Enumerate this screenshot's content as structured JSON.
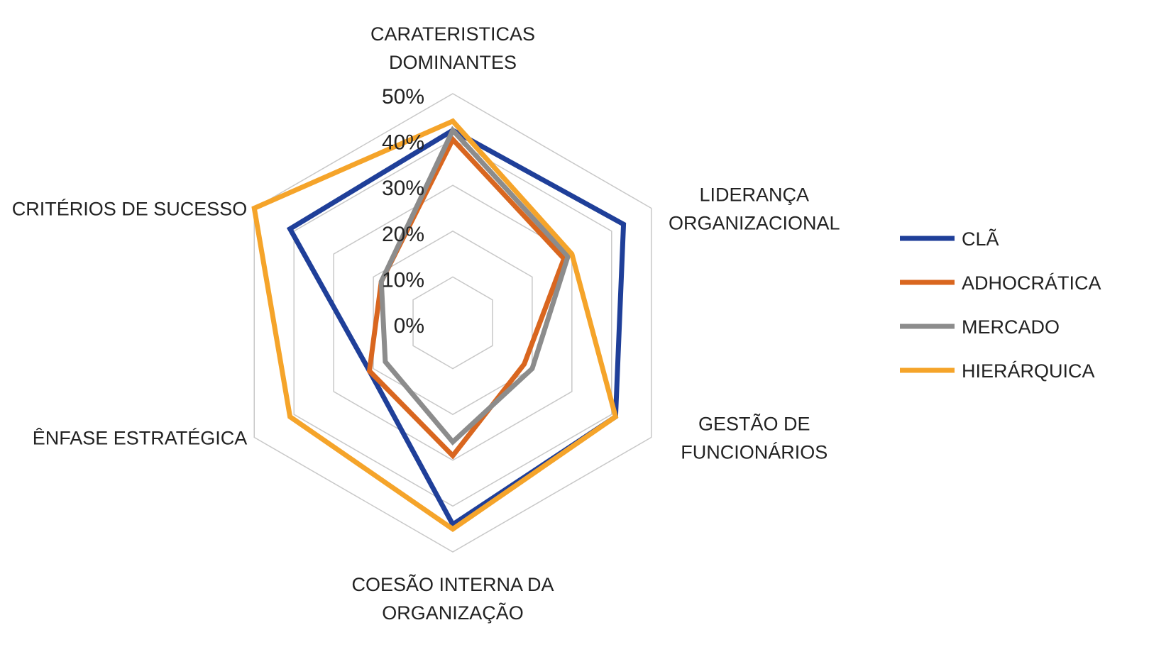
{
  "chart_data": {
    "type": "radar",
    "axes": [
      [
        "CARATERISTICAS",
        "DOMINANTES"
      ],
      [
        "LIDERANÇA",
        "ORGANIZACIONAL"
      ],
      [
        "GESTÃO DE",
        "FUNCIONÁRIOS"
      ],
      [
        "COESÃO INTERNA DA",
        "ORGANIZAÇÃO"
      ],
      [
        "ÊNFASE ESTRATÉGICA"
      ],
      [
        "CRITÉRIOS DE SUCESSO"
      ]
    ],
    "ticks": [
      "0%",
      "10%",
      "20%",
      "30%",
      "40%",
      "50%"
    ],
    "range": [
      0,
      50
    ],
    "grid": true,
    "legend_position": "right",
    "series": [
      {
        "name": "CLÃ",
        "color": "#1f3f99",
        "values": [
          42,
          43,
          41,
          44,
          21,
          41
        ]
      },
      {
        "name": "ADHOCRÁTICA",
        "color": "#d9661f",
        "values": [
          40,
          28,
          18,
          29,
          21,
          18
        ]
      },
      {
        "name": "MERCADO",
        "color": "#8c8c8c",
        "values": [
          42,
          29,
          20,
          26,
          17,
          18
        ]
      },
      {
        "name": "HIERÁRQUICA",
        "color": "#f5a42a",
        "values": [
          44,
          30,
          41,
          45,
          41,
          50
        ]
      }
    ]
  }
}
